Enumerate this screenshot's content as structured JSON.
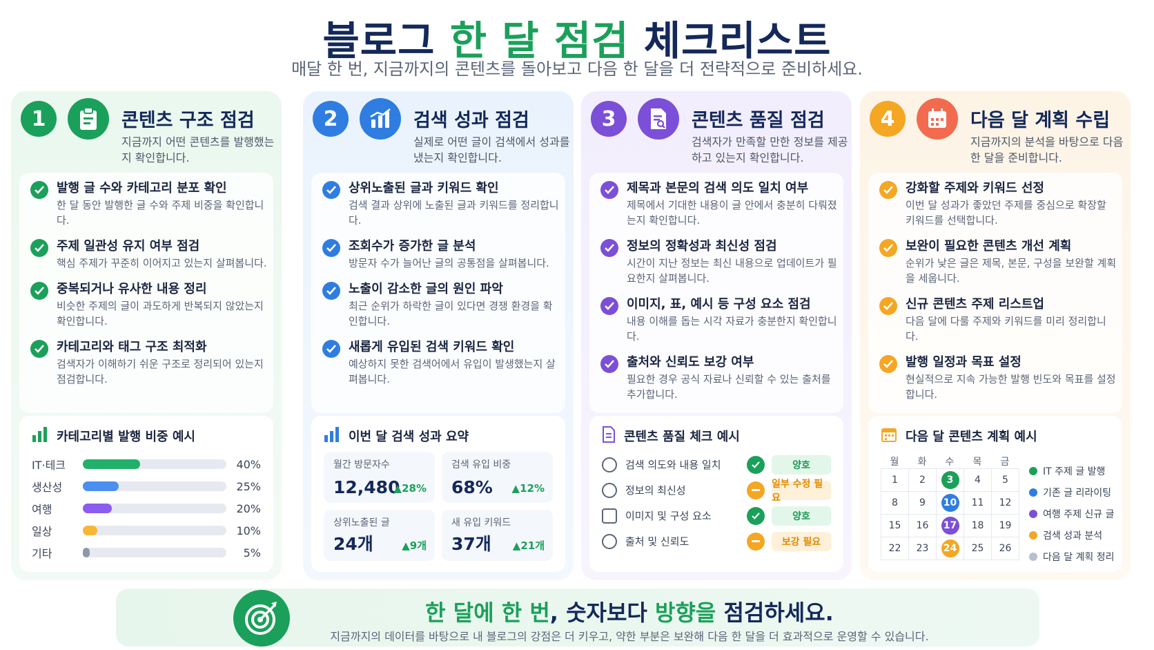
{
  "header": {
    "title_part1": "블로그 ",
    "title_part2": "한 달 점검",
    "title_part3": " 체크리스트",
    "subtitle": "매달 한 번, 지금까지의 콘텐츠를 돌아보고 다음 한 달을 더 전략적으로 준비하세요."
  },
  "colors": {
    "green": "#1aa05a",
    "blue": "#2f7de1",
    "purple": "#7b4fd8",
    "orange": "#f5a623",
    "red": "#f26b4f",
    "navy": "#14285a"
  },
  "sections": [
    {
      "num": "1",
      "title": "콘텐츠 구조 점검",
      "desc": "지금까지 어떤 콘텐츠를 발행했는지 확인합니다.",
      "icon": "clipboard-icon",
      "items": [
        {
          "title": "발행 글 수와 카테고리 분포 확인",
          "desc": "한 달 동안 발행한 글 수와 주제 비중을 확인합니다."
        },
        {
          "title": "주제 일관성 유지 여부 점검",
          "desc": "핵심 주제가 꾸준히 이어지고 있는지 살펴봅니다."
        },
        {
          "title": "중복되거나 유사한 내용 정리",
          "desc": "비슷한 주제의 글이 과도하게 반복되지 않았는지 확인합니다."
        },
        {
          "title": "카테고리와 태그 구조 최적화",
          "desc": "검색자가 이해하기 쉬운 구조로 정리되어 있는지 점검합니다."
        }
      ]
    },
    {
      "num": "2",
      "title": "검색 성과 점검",
      "desc": "실제로 어떤 글이 검색에서 성과를 냈는지 확인합니다.",
      "icon": "bar-chart-icon",
      "items": [
        {
          "title": "상위노출된 글과 키워드 확인",
          "desc": "검색 결과 상위에 노출된 글과 키워드를 정리합니다."
        },
        {
          "title": "조회수가 증가한 글 분석",
          "desc": "방문자 수가 늘어난 글의 공통점을 살펴봅니다."
        },
        {
          "title": "노출이 감소한 글의 원인 파악",
          "desc": "최근 순위가 하락한 글이 있다면 경쟁 환경을 확인합니다."
        },
        {
          "title": "새롭게 유입된 검색 키워드 확인",
          "desc": "예상하지 못한 검색어에서 유입이 발생했는지 살펴봅니다."
        }
      ]
    },
    {
      "num": "3",
      "title": "콘텐츠 품질 점검",
      "desc": "검색자가 만족할 만한 정보를 제공하고 있는지 확인합니다.",
      "icon": "document-search-icon",
      "items": [
        {
          "title": "제목과 본문의 검색 의도 일치 여부",
          "desc": "제목에서 기대한 내용이 글 안에서 충분히 다뤄졌는지 확인합니다."
        },
        {
          "title": "정보의 정확성과 최신성 점검",
          "desc": "시간이 지난 정보는 최신 내용으로 업데이트가 필요한지 살펴봅니다."
        },
        {
          "title": "이미지, 표, 예시 등 구성 요소 점검",
          "desc": "내용 이해를 돕는 시각 자료가 충분한지 확인합니다."
        },
        {
          "title": "출처와 신뢰도 보강 여부",
          "desc": "필요한 경우 공식 자료나 신뢰할 수 있는 출처를 추가합니다."
        }
      ]
    },
    {
      "num": "4",
      "title": "다음 달 계획 수립",
      "desc": "지금까지의 분석을 바탕으로 다음 한 달을 준비합니다.",
      "icon": "calendar-icon",
      "items": [
        {
          "title": "강화할 주제와 키워드 선정",
          "desc": "이번 달 성과가 좋았던 주제를 중심으로 확장할 키워드를 선택합니다."
        },
        {
          "title": "보완이 필요한 콘텐츠 개선 계획",
          "desc": "순위가 낮은 글은 제목, 본문, 구성을 보완할 계획을 세웁니다."
        },
        {
          "title": "신규 콘텐츠 주제 리스트업",
          "desc": "다음 달에 다룰 주제와 키워드를 미리 정리합니다."
        },
        {
          "title": "발행 일정과 목표 설정",
          "desc": "현실적으로 지속 가능한 발행 빈도와 목표를 설정합니다."
        }
      ]
    }
  ],
  "panel1": {
    "title": "카테고리별 발행 비중 예시",
    "bars": [
      {
        "label": "IT·테크",
        "value": 40,
        "text": "40%",
        "color": "#22b06a"
      },
      {
        "label": "생산성",
        "value": 25,
        "text": "25%",
        "color": "#4b8ff0"
      },
      {
        "label": "여행",
        "value": 20,
        "text": "20%",
        "color": "#8b5cf0"
      },
      {
        "label": "일상",
        "value": 10,
        "text": "10%",
        "color": "#f7b733"
      },
      {
        "label": "기타",
        "value": 5,
        "text": "5%",
        "color": "#8f98a8"
      }
    ]
  },
  "panel2": {
    "title": "이번 달 검색 성과 요약",
    "stats": [
      {
        "label": "월간 방문자수",
        "value": "12,480",
        "change": "▲28%"
      },
      {
        "label": "검색 유입 비중",
        "value": "68%",
        "change": "▲12%"
      },
      {
        "label": "상위노출된 글",
        "value": "24개",
        "change": "▲9개"
      },
      {
        "label": "새 유입 키워드",
        "value": "37개",
        "change": "▲21개"
      }
    ]
  },
  "panel3": {
    "title": "콘텐츠 품질 체크 예시",
    "rows": [
      {
        "label": "검색 의도와 내용 일치",
        "status": "양호",
        "kind": "good"
      },
      {
        "label": "정보의 최신성",
        "status": "일부 수정 필요",
        "kind": "warn"
      },
      {
        "label": "이미지 및 구성 요소",
        "status": "양호",
        "kind": "good"
      },
      {
        "label": "출처 및 신뢰도",
        "status": "보강 필요",
        "kind": "warn"
      }
    ]
  },
  "panel4": {
    "title": "다음 달 콘텐츠 계획 예시",
    "weekdays": [
      "월",
      "화",
      "수",
      "목",
      "금"
    ],
    "days": [
      {
        "d": "1"
      },
      {
        "d": "2"
      },
      {
        "d": "3",
        "color": "#1aa05a"
      },
      {
        "d": "4"
      },
      {
        "d": "5"
      },
      {
        "d": "8"
      },
      {
        "d": "9"
      },
      {
        "d": "10",
        "color": "#2f7de1"
      },
      {
        "d": "11"
      },
      {
        "d": "12"
      },
      {
        "d": "15"
      },
      {
        "d": "16"
      },
      {
        "d": "17",
        "color": "#7b4fd8"
      },
      {
        "d": "18"
      },
      {
        "d": "19"
      },
      {
        "d": "22"
      },
      {
        "d": "23"
      },
      {
        "d": "24",
        "color": "#f5a623"
      },
      {
        "d": "25"
      },
      {
        "d": "26"
      }
    ],
    "legend": [
      {
        "label": "IT 주제 글 발행",
        "color": "#1aa05a"
      },
      {
        "label": "기존 글 리라이팅",
        "color": "#2f7de1"
      },
      {
        "label": "여행 주제 신규 글",
        "color": "#7b4fd8"
      },
      {
        "label": "검색 성과 분석",
        "color": "#f5a623"
      },
      {
        "label": "다음 달 계획 정리",
        "color": "#b8bfcc"
      }
    ]
  },
  "footer": {
    "main_part1": "한 달에 한 번",
    "main_part2": ", 숫자보다 ",
    "main_part3": "방향을",
    "main_part4": " 점검하세요.",
    "sub": "지금까지의 데이터를 바탕으로 내 블로그의 강점은 더 키우고, 약한 부분은 보완해 다음 한 달을 더 효과적으로 운영할 수 있습니다."
  }
}
